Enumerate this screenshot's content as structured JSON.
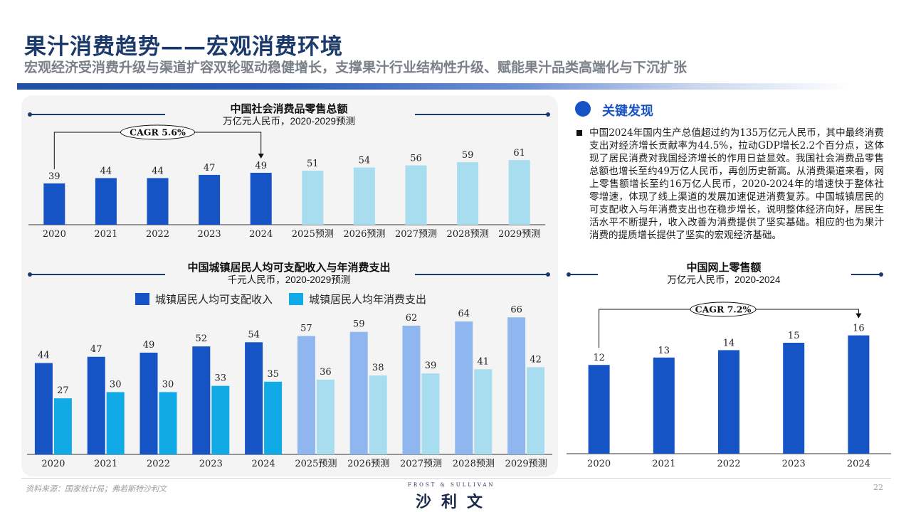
{
  "header": {
    "title": "果汁消费趋势——宏观消费环境",
    "subtitle": "宏观经济受消费升级与渠道扩容双轮驱动稳健增长，支撑果汁行业结构性升级、赋能果汁品类高端化与下沉扩张"
  },
  "key_findings": {
    "title": "关键发现",
    "text": "中国2024年国内生产总值超过约为135万亿元人民币，其中最终消费支出对经济增长贡献率为44.5%，拉动GDP增长2.2个百分点，这体现了居民消费对我国经济增长的作用日益显效。我国社会消费品零售总额也增长至约49万亿人民币，再创历史新高。从消费渠道来看，网上零售额增长至约16万亿人民币，2020-2024年的增速快于整体社零增速，体现了线上渠道的发展加速促进消费复苏。中国城镇居民的可支配收入与年消费支出也在稳步增长，说明整体经济向好，居民生活水平不断提升，收入改善为消费提供了坚实基础。相应的也为果汁消费的提质增长提供了坚实的宏观经济基础。"
  },
  "footer": {
    "source": "资料来源：国家统计局；弗若斯特沙利文",
    "logo_small": "FROST & SULLIVAN",
    "logo": "沙利文",
    "page": "22"
  },
  "colors": {
    "actual_dark": "#1653c4",
    "forecast_light": "#a8dcef",
    "income_forecast": "#8fb6ef",
    "expense_actual": "#10aae6",
    "navy": "#1b3a6b"
  },
  "chart_data": [
    {
      "type": "bar",
      "title": "中国社会消费品零售总额",
      "subtitle": "万亿元人民币，2020-2029预测",
      "categories": [
        "2020",
        "2021",
        "2022",
        "2023",
        "2024",
        "2025预测",
        "2026预测",
        "2027预测",
        "2028预测",
        "2029预测"
      ],
      "values": [
        39,
        44,
        44,
        47,
        49,
        51,
        54,
        56,
        59,
        61
      ],
      "forecast_from_index": 5,
      "annotation": "CAGR 5.6%",
      "ylim": [
        0,
        75
      ]
    },
    {
      "type": "bar",
      "title": "中国城镇居民人均可支配收入与年消费支出",
      "subtitle": "千元人民币，2020-2029预测",
      "categories": [
        "2020",
        "2021",
        "2022",
        "2023",
        "2024",
        "2025预测",
        "2026预测",
        "2027预测",
        "2028预测",
        "2029预测"
      ],
      "series": [
        {
          "name": "城镇居民人均可支配收入",
          "values": [
            44,
            47,
            49,
            52,
            54,
            57,
            59,
            62,
            64,
            66
          ]
        },
        {
          "name": "城镇居民人均年消费支出",
          "values": [
            27,
            30,
            30,
            33,
            35,
            36,
            38,
            39,
            41,
            42
          ]
        }
      ],
      "forecast_from_index": 5,
      "legend": "top",
      "ylim": [
        0,
        75
      ]
    },
    {
      "type": "bar",
      "title": "中国网上零售额",
      "subtitle": "万亿元人民币，2020-2024",
      "categories": [
        "2020",
        "2021",
        "2022",
        "2023",
        "2024"
      ],
      "values": [
        12,
        13,
        14,
        15,
        16
      ],
      "annotation": "CAGR 7.2%",
      "ylim": [
        0,
        21
      ]
    }
  ]
}
